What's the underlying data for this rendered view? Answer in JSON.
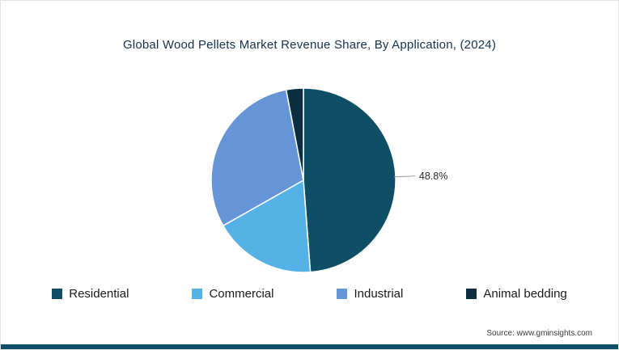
{
  "title": "Global Wood Pellets Market Revenue Share, By Application, (2024)",
  "source": "Source: www.gminsights.com",
  "accent_color": "#0e4f66",
  "chart_data": {
    "type": "pie",
    "title": "Global Wood Pellets Market Revenue Share, By Application, (2024)",
    "categories": [
      "Residential",
      "Commercial",
      "Industrial",
      "Animal bedding"
    ],
    "values": [
      48.8,
      18.0,
      30.2,
      3.0
    ],
    "colors": [
      "#0e4f66",
      "#55b1e6",
      "#6595d6",
      "#0b2f40"
    ],
    "start_angle_deg": 0,
    "direction": "clockwise",
    "legend_position": "bottom",
    "data_labels": [
      {
        "index": 0,
        "label": "48.8%"
      }
    ]
  },
  "legend": {
    "items": [
      {
        "label": "Residential",
        "color": "#0e4f66"
      },
      {
        "label": "Commercial",
        "color": "#55b1e6"
      },
      {
        "label": "Industrial",
        "color": "#6595d6"
      },
      {
        "label": "Animal bedding",
        "color": "#0b2f40"
      }
    ]
  }
}
